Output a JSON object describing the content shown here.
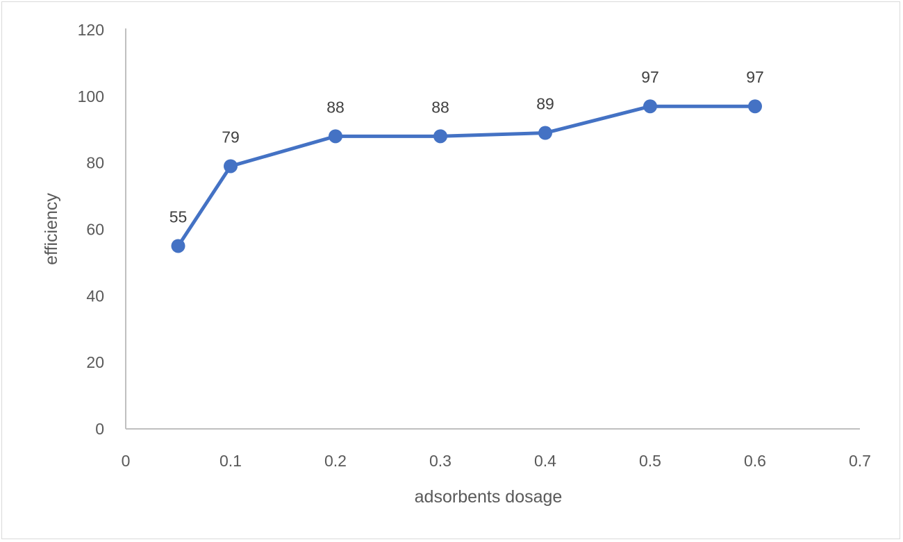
{
  "chart_data": {
    "type": "line",
    "title": "",
    "xlabel": "adsorbents dosage",
    "ylabel": "efficiency",
    "x": [
      0.05,
      0.1,
      0.2,
      0.3,
      0.4,
      0.5,
      0.6
    ],
    "series": [
      {
        "name": "efficiency",
        "values": [
          55,
          79,
          88,
          88,
          89,
          97,
          97
        ],
        "color": "#4472C4"
      }
    ],
    "data_labels": [
      "55",
      "79",
      "88",
      "88",
      "89",
      "97",
      "97"
    ],
    "xlim": [
      0,
      0.7
    ],
    "ylim": [
      0,
      120
    ],
    "x_ticks": [
      "0",
      "0.1",
      "0.2",
      "0.3",
      "0.4",
      "0.5",
      "0.6",
      "0.7"
    ],
    "y_ticks": [
      "0",
      "20",
      "40",
      "60",
      "80",
      "100",
      "120"
    ],
    "grid": false,
    "legend": null
  },
  "colors": {
    "series": "#4472C4",
    "axis": "#bfbfbf",
    "text": "#595959"
  }
}
